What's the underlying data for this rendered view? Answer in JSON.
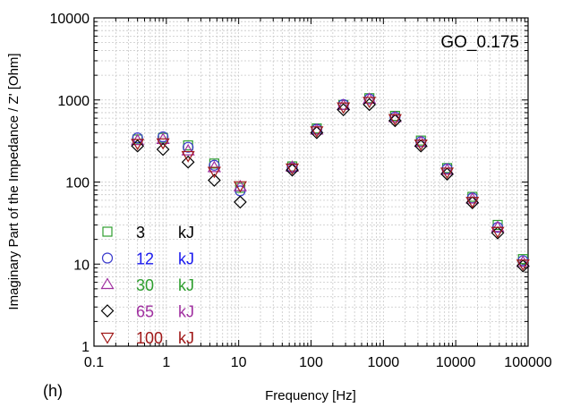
{
  "chart_data": {
    "type": "scatter",
    "title": "GO_0.175",
    "panel_label": "(h)",
    "xlabel": "Frequency [Hz]",
    "ylabel": "Imaginary Part of the Impedance / Z' [Ohm]",
    "xscale": "log",
    "yscale": "log",
    "xlim": [
      0.1,
      100000
    ],
    "ylim": [
      1,
      10000
    ],
    "grid": true,
    "x_tick_labels": [
      "0.1",
      "1",
      "10",
      "100",
      "1000",
      "10000",
      "100000"
    ],
    "y_tick_labels": [
      "1",
      "10",
      "100",
      "1000",
      "10000"
    ],
    "legend_placement": "lower-left",
    "x": [
      0.4,
      0.9,
      2,
      4.6,
      10.5,
      55,
      120,
      280,
      640,
      1450,
      3300,
      7600,
      17000,
      38000,
      85000
    ],
    "series": [
      {
        "name": "3",
        "unit": "kJ",
        "color": "#2e9e2e",
        "text_color": "#000000",
        "marker": "square",
        "values": [
          330,
          345,
          280,
          168,
          85,
          155,
          450,
          870,
          1050,
          640,
          320,
          148,
          66,
          30,
          11.5
        ]
      },
      {
        "name": "12",
        "unit": "kJ",
        "color": "#3a3acc",
        "text_color": "#1a1aee",
        "marker": "circle",
        "values": [
          345,
          355,
          265,
          160,
          78,
          150,
          440,
          880,
          1030,
          620,
          310,
          145,
          64,
          28,
          11
        ]
      },
      {
        "name": "30",
        "unit": "kJ",
        "color": "#a030a0",
        "text_color": "#2e9e2e",
        "marker": "triangle-up",
        "values": [
          320,
          330,
          240,
          150,
          88,
          152,
          430,
          860,
          1020,
          610,
          305,
          140,
          62,
          28,
          10.5
        ]
      },
      {
        "name": "65",
        "unit": "kJ",
        "color": "#000000",
        "text_color": "#a030a0",
        "marker": "diamond",
        "values": [
          275,
          250,
          175,
          105,
          57,
          140,
          400,
          760,
          880,
          560,
          275,
          125,
          56,
          24,
          9.5
        ]
      },
      {
        "name": "100",
        "unit": "kJ",
        "color": "#a01818",
        "text_color": "#a01818",
        "marker": "triangle-down",
        "values": [
          295,
          300,
          210,
          135,
          90,
          148,
          420,
          820,
          960,
          590,
          290,
          132,
          58,
          25,
          10
        ]
      }
    ]
  }
}
